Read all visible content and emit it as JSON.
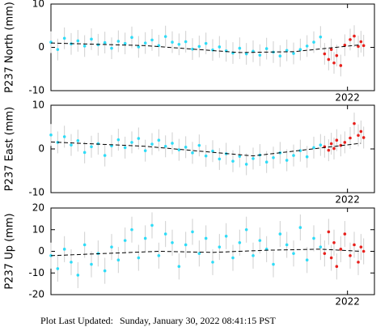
{
  "chart_data": [
    {
      "type": "scatter",
      "ylabel": "P237 North (mm)",
      "xlim": [
        2019.8,
        2022.2
      ],
      "xticks": [
        2022
      ],
      "ylim": [
        -10,
        10
      ],
      "yticks": [
        -10,
        0,
        10
      ],
      "series": [
        {
          "color": "#2fdcf7",
          "error_color": "#cfcfcf",
          "error": 2.5,
          "x": [
            2019.8,
            2019.85,
            2019.9,
            2019.95,
            2020,
            2020.05,
            2020.1,
            2020.15,
            2020.2,
            2020.25,
            2020.3,
            2020.35,
            2020.4,
            2020.45,
            2020.5,
            2020.55,
            2020.6,
            2020.65,
            2020.7,
            2020.75,
            2020.8,
            2020.85,
            2020.9,
            2020.95,
            2021,
            2021.05,
            2021.1,
            2021.15,
            2021.2,
            2021.25,
            2021.3,
            2021.35,
            2021.4,
            2021.45,
            2021.5,
            2021.55,
            2021.6,
            2021.65,
            2021.7,
            2021.75,
            2021.8
          ],
          "values": [
            1.2,
            -0.5,
            2.1,
            0.8,
            1.5,
            0.3,
            1.9,
            0.6,
            1.1,
            -0.2,
            1.4,
            0.9,
            2.3,
            0.1,
            1.0,
            1.7,
            0.4,
            2.5,
            1.2,
            0.7,
            1.3,
            -0.4,
            0.2,
            0.9,
            -0.6,
            0.1,
            -0.8,
            -1.3,
            -0.2,
            -1.5,
            -0.9,
            -1.8,
            -0.3,
            -1.1,
            -2.0,
            -0.7,
            -1.4,
            -0.5,
            0.3,
            1.2,
            2.4
          ]
        },
        {
          "color": "#e8201c",
          "error_color": "#cfcfcf",
          "error": 2.5,
          "x": [
            2021.83,
            2021.86,
            2021.88,
            2021.9,
            2021.92,
            2021.95,
            2021.98,
            2022.02,
            2022.05,
            2022.08,
            2022.1,
            2022.12
          ],
          "values": [
            -1.5,
            -2.8,
            -0.5,
            -3.6,
            -1.9,
            -4.2,
            0.5,
            1.8,
            2.6,
            0.2,
            1.3,
            0.4
          ]
        },
        {
          "style": "dashed",
          "color": "#000000",
          "x": [
            2019.8,
            2020.5,
            2021.2,
            2021.6,
            2022.1
          ],
          "values": [
            1,
            0.4,
            -1.2,
            -1,
            0.6
          ]
        }
      ]
    },
    {
      "type": "scatter",
      "ylabel": "P237 East (mm)",
      "xlim": [
        2019.8,
        2022.2
      ],
      "xticks": [
        2022
      ],
      "ylim": [
        -10,
        10
      ],
      "yticks": [
        -10,
        0,
        10
      ],
      "series": [
        {
          "color": "#2fdcf7",
          "error_color": "#cfcfcf",
          "error": 2.5,
          "x": [
            2019.8,
            2019.85,
            2019.9,
            2019.95,
            2020,
            2020.05,
            2020.1,
            2020.15,
            2020.2,
            2020.25,
            2020.3,
            2020.35,
            2020.4,
            2020.45,
            2020.5,
            2020.55,
            2020.6,
            2020.65,
            2020.7,
            2020.75,
            2020.8,
            2020.85,
            2020.9,
            2020.95,
            2021,
            2021.05,
            2021.1,
            2021.15,
            2021.2,
            2021.25,
            2021.3,
            2021.35,
            2021.4,
            2021.45,
            2021.5,
            2021.55,
            2021.6,
            2021.65,
            2021.7,
            2021.75,
            2021.8
          ],
          "values": [
            3.2,
            1.5,
            2.8,
            0.9,
            1.9,
            -0.8,
            0.5,
            1.2,
            -1.5,
            0.7,
            2.1,
            0.3,
            1.5,
            2.4,
            -0.4,
            1.1,
            2.0,
            0.6,
            1.3,
            -0.2,
            0.4,
            -0.9,
            0.8,
            -1.6,
            -0.5,
            -2.3,
            -1.1,
            -2.8,
            -1.7,
            -3.5,
            -2.2,
            -1.4,
            -3.0,
            -2.0,
            -0.9,
            -2.6,
            -1.5,
            -0.4,
            -1.8,
            0.3,
            0.9
          ]
        },
        {
          "color": "#e8201c",
          "error_color": "#cfcfcf",
          "error": 2.5,
          "x": [
            2021.83,
            2021.86,
            2021.88,
            2021.9,
            2021.92,
            2021.95,
            2021.98,
            2022.02,
            2022.05,
            2022.08,
            2022.1,
            2022.12
          ],
          "values": [
            0.5,
            -0.3,
            1.2,
            0.1,
            2.0,
            0.8,
            1.5,
            2.5,
            5.8,
            3.1,
            4.0,
            2.6
          ]
        },
        {
          "style": "dashed",
          "color": "#000000",
          "x": [
            2019.8,
            2020.5,
            2021.3,
            2022.1
          ],
          "values": [
            1.6,
            0.6,
            -1.6,
            1.3
          ]
        }
      ]
    },
    {
      "type": "scatter",
      "ylabel": "P237 Up (mm)",
      "xlim": [
        2019.8,
        2022.2
      ],
      "xticks": [
        2022
      ],
      "ylim": [
        -20,
        20
      ],
      "yticks": [
        -20,
        -10,
        0,
        10,
        20
      ],
      "series": [
        {
          "color": "#2fdcf7",
          "error_color": "#cfcfcf",
          "error": 6,
          "x": [
            2019.8,
            2019.85,
            2019.9,
            2019.95,
            2020,
            2020.05,
            2020.1,
            2020.15,
            2020.2,
            2020.25,
            2020.3,
            2020.35,
            2020.4,
            2020.45,
            2020.5,
            2020.55,
            2020.6,
            2020.65,
            2020.7,
            2020.75,
            2020.8,
            2020.85,
            2020.9,
            2020.95,
            2021,
            2021.05,
            2021.1,
            2021.15,
            2021.2,
            2021.25,
            2021.3,
            2021.35,
            2021.4,
            2021.45,
            2021.5,
            2021.55,
            2021.6,
            2021.65,
            2021.7,
            2021.75,
            2021.8
          ],
          "values": [
            -2,
            -8,
            1,
            -5,
            -11,
            3,
            -6,
            -1,
            -9,
            2,
            -4,
            5,
            10,
            -3,
            6,
            12,
            -2,
            8,
            4,
            -7,
            3,
            9,
            -1,
            6,
            -5,
            2,
            7,
            -3,
            4,
            10,
            -2,
            5,
            1,
            -6,
            8,
            3,
            -1,
            11,
            -4,
            6,
            2
          ]
        },
        {
          "color": "#e8201c",
          "error_color": "#cfcfcf",
          "error": 6,
          "x": [
            2021.83,
            2021.86,
            2021.88,
            2021.9,
            2021.92,
            2021.95,
            2021.98,
            2022.02,
            2022.05,
            2022.08,
            2022.1,
            2022.12
          ],
          "values": [
            -1,
            9,
            -3,
            4,
            -7,
            1,
            8,
            -2,
            3,
            -5,
            2,
            0
          ]
        },
        {
          "style": "dashed",
          "color": "#000000",
          "x": [
            2019.8,
            2020.2,
            2020.6,
            2021,
            2021.4,
            2021.8,
            2022.1
          ],
          "values": [
            -2,
            -1,
            0,
            -0.5,
            0.5,
            1,
            0
          ]
        }
      ]
    }
  ],
  "footer": {
    "label": "Plot Last Updated:",
    "value": "Sunday, January 30, 2022 08:41:15 PST"
  }
}
